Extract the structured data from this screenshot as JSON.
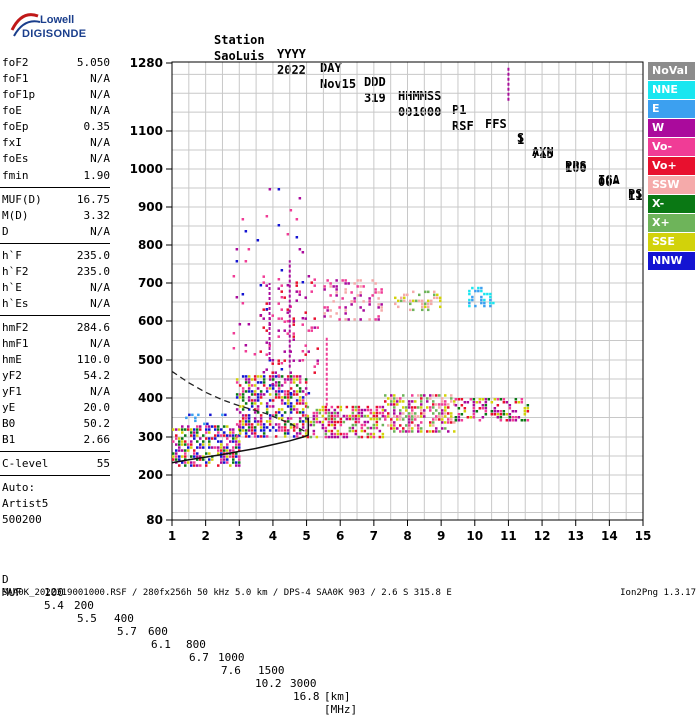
{
  "logo": {
    "line1": "Lowell",
    "line2": "DIGISONDE"
  },
  "header": {
    "labels": [
      "Station",
      "YYYY",
      "DAY",
      "DDD",
      "HHMMSS",
      "P1",
      "FFS",
      "S",
      "AXN",
      "PPS",
      "IGA",
      "PS"
    ],
    "values": [
      "SaoLuis",
      "2022",
      "Nov15",
      "319",
      "001000",
      "RSF",
      "1",
      "715",
      "100",
      "00-",
      "11"
    ]
  },
  "params_group1": [
    {
      "k": "foF2",
      "v": "5.050"
    },
    {
      "k": "foF1",
      "v": "N/A"
    },
    {
      "k": "foF1p",
      "v": "N/A"
    },
    {
      "k": "foE",
      "v": "N/A"
    },
    {
      "k": "foEp",
      "v": "0.35"
    },
    {
      "k": "fxI",
      "v": "N/A"
    },
    {
      "k": "foEs",
      "v": "N/A"
    },
    {
      "k": "fmin",
      "v": "1.90"
    }
  ],
  "params_group2": [
    {
      "k": "MUF(D)",
      "v": "16.75"
    },
    {
      "k": "M(D)",
      "v": "3.32"
    },
    {
      "k": "D",
      "v": "N/A"
    }
  ],
  "params_group3": [
    {
      "k": "h`F",
      "v": "235.0"
    },
    {
      "k": "h`F2",
      "v": "235.0"
    },
    {
      "k": "h`E",
      "v": "N/A"
    },
    {
      "k": "h`Es",
      "v": "N/A"
    }
  ],
  "params_group4": [
    {
      "k": "hmF2",
      "v": "284.6"
    },
    {
      "k": "hmF1",
      "v": "N/A"
    },
    {
      "k": "hmE",
      "v": "110.0"
    },
    {
      "k": "yF2",
      "v": "54.2"
    },
    {
      "k": "yF1",
      "v": "N/A"
    },
    {
      "k": "yE",
      "v": "20.0"
    },
    {
      "k": "B0",
      "v": "50.2"
    },
    {
      "k": "B1",
      "v": "2.66"
    }
  ],
  "params_group5": [
    {
      "k": "C-level",
      "v": "55"
    }
  ],
  "auto": [
    "Auto:",
    "Artist5",
    "500200"
  ],
  "legend": [
    {
      "label": "NoVal",
      "color": "#8c8c8c"
    },
    {
      "label": "NNE",
      "color": "#19e6f0"
    },
    {
      "label": "E",
      "color": "#3ca0f0"
    },
    {
      "label": "W",
      "color": "#aa0a9c"
    },
    {
      "label": "Vo-",
      "color": "#f03c96"
    },
    {
      "label": "Vo+",
      "color": "#e8102e"
    },
    {
      "label": "SSW",
      "color": "#f5aaaa"
    },
    {
      "label": "X-",
      "color": "#0a7814"
    },
    {
      "label": "X+",
      "color": "#6eb45a"
    },
    {
      "label": "SSE",
      "color": "#d2d20a"
    },
    {
      "label": "NNW",
      "color": "#1414d2"
    }
  ],
  "bottom": {
    "d_label": "D",
    "d_values": [
      "100",
      "200",
      "400",
      "600",
      "800",
      "1000",
      "1500",
      "3000"
    ],
    "d_unit": "[km]",
    "muf_label": "MUF",
    "muf_values": [
      "5.4",
      "5.5",
      "5.7",
      "6.1",
      "6.7",
      "7.6",
      "10.2",
      "16.8"
    ],
    "muf_unit": "[MHz]"
  },
  "footer": {
    "left": "SAA0K_2022319001000.RSF / 280fx256h 50 kHz 5.0 km / DPS-4 SAA0K 903 / 2.6 S 315.8 E",
    "right": "Ion2Png 1.3.17"
  },
  "chart_data": {
    "type": "scatter",
    "x_ticks": [
      1,
      2,
      3,
      4,
      5,
      6,
      7,
      8,
      9,
      10,
      11,
      12,
      13,
      14,
      15
    ],
    "y_ticks": [
      80,
      200,
      300,
      400,
      500,
      600,
      700,
      800,
      900,
      1000,
      1100,
      1280
    ],
    "xlim": [
      1,
      15
    ],
    "ylim": [
      80,
      1280
    ],
    "grid": true,
    "legend_position": "right",
    "regions": [
      {
        "x": [
          1.0,
          3.0
        ],
        "y": [
          225,
          330
        ],
        "colors": [
          "#1414d2",
          "#e8102e",
          "#aa0a9c",
          "#d2d20a",
          "#0a7814",
          "#f03c96"
        ],
        "density": 0.62
      },
      {
        "x": [
          1.3,
          2.6
        ],
        "y": [
          330,
          360
        ],
        "colors": [
          "#1414d2",
          "#3ca0f0"
        ],
        "density": 0.2
      },
      {
        "x": [
          2.9,
          5.0
        ],
        "y": [
          300,
          460
        ],
        "colors": [
          "#e8102e",
          "#aa0a9c",
          "#f03c96",
          "#1414d2",
          "#d2d20a",
          "#0a7814"
        ],
        "density": 0.55
      },
      {
        "x": [
          5.0,
          7.3
        ],
        "y": [
          300,
          380
        ],
        "colors": [
          "#e8102e",
          "#f03c96",
          "#d2d20a",
          "#6eb45a",
          "#aa0a9c"
        ],
        "density": 0.6
      },
      {
        "x": [
          7.3,
          9.4
        ],
        "y": [
          315,
          410
        ],
        "colors": [
          "#e8102e",
          "#f03c96",
          "#d2d20a",
          "#aa0a9c",
          "#6eb45a",
          "#f5aaaa"
        ],
        "density": 0.55
      },
      {
        "x": [
          9.4,
          11.6
        ],
        "y": [
          340,
          400
        ],
        "colors": [
          "#e8102e",
          "#f03c96",
          "#d2d20a",
          "#0a7814",
          "#aa0a9c"
        ],
        "density": 0.5
      },
      {
        "x": [
          3.6,
          5.3
        ],
        "y": [
          460,
          720
        ],
        "colors": [
          "#aa0a9c",
          "#f03c96",
          "#e8102e"
        ],
        "density": 0.12
      },
      {
        "x": [
          5.5,
          7.2
        ],
        "y": [
          600,
          710
        ],
        "colors": [
          "#aa0a9c",
          "#f03c96",
          "#f5aaaa"
        ],
        "density": 0.25
      },
      {
        "x": [
          7.6,
          9.0
        ],
        "y": [
          630,
          680
        ],
        "colors": [
          "#d2d20a",
          "#f5aaaa",
          "#6eb45a"
        ],
        "density": 0.25
      },
      {
        "x": [
          9.8,
          10.6
        ],
        "y": [
          640,
          690
        ],
        "colors": [
          "#19e6f0",
          "#3ca0f0"
        ],
        "density": 0.35
      },
      {
        "x": [
          2.8,
          5.2
        ],
        "y": [
          400,
          950
        ],
        "colors": [
          "#aa0a9c",
          "#f03c96",
          "#1414d2"
        ],
        "density": 0.025
      }
    ],
    "vertical_lines": [
      {
        "x": 11.0,
        "y": [
          1180,
          1270
        ],
        "color": "#aa0a9c"
      },
      {
        "x": 3.9,
        "y": [
          500,
          700
        ],
        "color": "#aa0a9c"
      },
      {
        "x": 4.5,
        "y": [
          480,
          760
        ],
        "color": "#aa0a9c"
      },
      {
        "x": 5.6,
        "y": [
          380,
          560
        ],
        "color": "#f03c96"
      }
    ],
    "dashed_curve": [
      [
        1.0,
        470
      ],
      [
        1.5,
        440
      ],
      [
        2.0,
        415
      ],
      [
        2.5,
        395
      ],
      [
        3.0,
        380
      ],
      [
        3.8,
        360
      ],
      [
        4.5,
        335
      ],
      [
        5.05,
        310
      ]
    ],
    "solid_curve": [
      [
        1.0,
        232
      ],
      [
        1.5,
        240
      ],
      [
        2.0,
        247
      ],
      [
        2.5,
        254
      ],
      [
        3.0,
        262
      ],
      [
        3.5,
        270
      ],
      [
        4.0,
        280
      ],
      [
        4.5,
        290
      ],
      [
        4.9,
        300
      ],
      [
        5.05,
        305
      ],
      [
        5.05,
        350
      ]
    ]
  }
}
